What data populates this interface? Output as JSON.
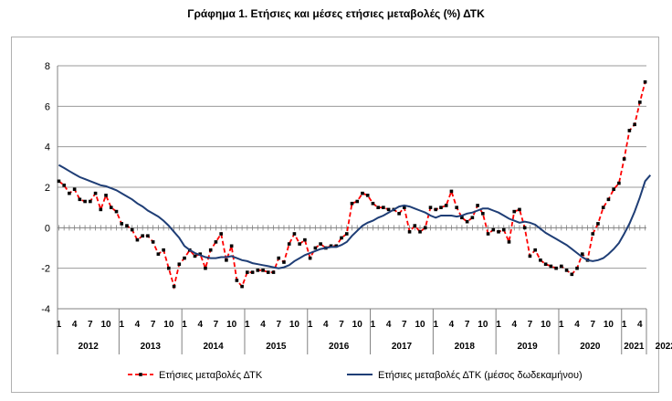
{
  "chart_data": {
    "type": "line",
    "title": "Γράφημα 1. Ετήσιες και μέσες ετήσιες μεταβολές (%) ΔΤΚ",
    "ylim": [
      -4,
      8
    ],
    "yticks": [
      "8",
      "6",
      "4",
      "2",
      "0",
      "-2",
      "-4"
    ],
    "ytick_values": [
      8,
      6,
      4,
      2,
      0,
      -2,
      -4
    ],
    "grid": true,
    "legend_position": "bottom",
    "month_labels": [
      "1",
      "4",
      "7",
      "10"
    ],
    "years": [
      "2012",
      "2013",
      "2014",
      "2015",
      "2016",
      "2017",
      "2018",
      "2019",
      "2020",
      "2021",
      "2022"
    ],
    "start": "2012-01",
    "end": "2022-01",
    "series": [
      {
        "name": "Ετήσιες μεταβολές ΔΤΚ",
        "color": "#ff0000",
        "style": "dashed-with-markers",
        "values": [
          2.3,
          2.1,
          1.7,
          1.9,
          1.4,
          1.3,
          1.3,
          1.7,
          0.9,
          1.6,
          1.0,
          0.8,
          0.2,
          0.1,
          -0.1,
          -0.6,
          -0.4,
          -0.4,
          -0.7,
          -1.3,
          -1.1,
          -2.0,
          -2.9,
          -1.8,
          -1.5,
          -1.1,
          -1.4,
          -1.3,
          -2.0,
          -1.1,
          -0.7,
          -0.3,
          -1.6,
          -0.9,
          -2.6,
          -2.9,
          -2.2,
          -2.2,
          -2.1,
          -2.1,
          -2.2,
          -2.2,
          -1.5,
          -1.7,
          -0.8,
          -0.3,
          -0.8,
          -0.6,
          -1.5,
          -1.0,
          -0.8,
          -1.0,
          -0.9,
          -0.9,
          -0.5,
          -0.3,
          1.2,
          1.3,
          1.7,
          1.6,
          1.2,
          1.0,
          1.0,
          0.9,
          0.9,
          0.7,
          1.0,
          -0.2,
          0.1,
          -0.2,
          0.0,
          1.0,
          0.9,
          1.0,
          1.1,
          1.8,
          1.0,
          0.5,
          0.3,
          0.5,
          1.1,
          0.7,
          -0.3,
          -0.1,
          -0.2,
          -0.1,
          -0.7,
          0.8,
          0.9,
          0.0,
          -1.4,
          -1.1,
          -1.6,
          -1.8,
          -1.9,
          -2.0,
          -1.9,
          -2.1,
          -2.3,
          -2.0,
          -1.3,
          -1.6,
          -0.3,
          0.2,
          1.0,
          1.4,
          1.9,
          2.2,
          3.4,
          4.8,
          5.1,
          6.2,
          7.2
        ]
      },
      {
        "name": "Ετήσιες μεταβολές ΔΤΚ (μέσος δωδεκαμήνου)",
        "color": "#1f3e76",
        "style": "solid",
        "values": [
          3.1,
          2.95,
          2.8,
          2.65,
          2.5,
          2.4,
          2.3,
          2.2,
          2.1,
          2.05,
          1.95,
          1.85,
          1.7,
          1.55,
          1.4,
          1.2,
          1.05,
          0.85,
          0.7,
          0.55,
          0.35,
          0.1,
          -0.2,
          -0.5,
          -0.9,
          -1.1,
          -1.25,
          -1.35,
          -1.45,
          -1.5,
          -1.5,
          -1.45,
          -1.45,
          -1.4,
          -1.5,
          -1.6,
          -1.65,
          -1.75,
          -1.8,
          -1.85,
          -1.9,
          -1.95,
          -2.0,
          -1.95,
          -1.85,
          -1.65,
          -1.5,
          -1.35,
          -1.25,
          -1.15,
          -1.05,
          -1.0,
          -0.95,
          -0.95,
          -0.85,
          -0.7,
          -0.4,
          -0.15,
          0.1,
          0.25,
          0.35,
          0.5,
          0.6,
          0.75,
          0.9,
          1.05,
          1.1,
          1.05,
          0.95,
          0.85,
          0.75,
          0.6,
          0.5,
          0.6,
          0.6,
          0.6,
          0.55,
          0.6,
          0.7,
          0.75,
          0.85,
          0.95,
          0.95,
          0.85,
          0.75,
          0.6,
          0.45,
          0.35,
          0.25,
          0.3,
          0.25,
          0.15,
          -0.05,
          -0.25,
          -0.4,
          -0.55,
          -0.7,
          -0.85,
          -1.05,
          -1.25,
          -1.45,
          -1.6,
          -1.65,
          -1.6,
          -1.5,
          -1.3,
          -1.05,
          -0.75,
          -0.3,
          0.2,
          0.8,
          1.5,
          2.3,
          2.6
        ]
      }
    ]
  }
}
